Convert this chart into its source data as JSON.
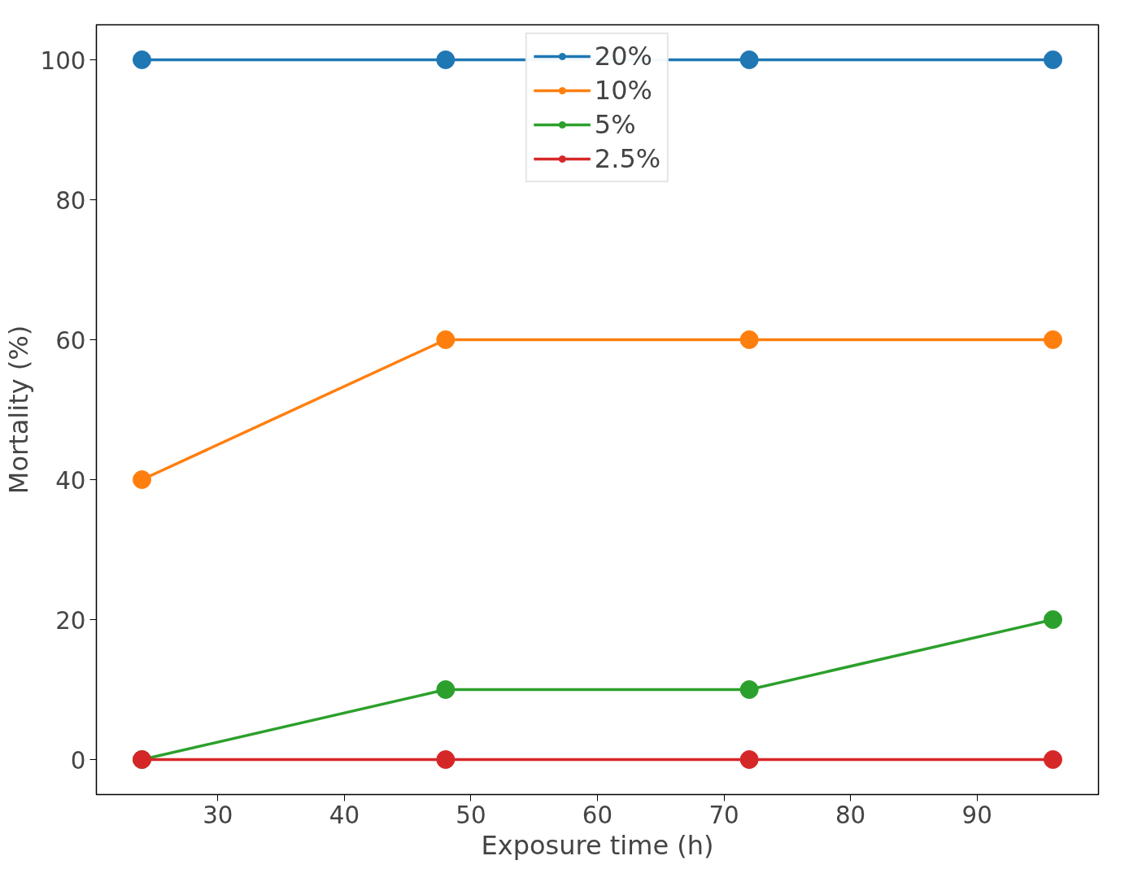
{
  "chart_data": {
    "type": "line",
    "xlabel": "Exposure time (h)",
    "ylabel": "Mortality (%)",
    "x": [
      24,
      48,
      72,
      96
    ],
    "series": [
      {
        "name": "20%",
        "color": "#1f77b4",
        "values": [
          100,
          100,
          100,
          100
        ]
      },
      {
        "name": "10%",
        "color": "#ff7f0e",
        "values": [
          40,
          60,
          60,
          60
        ]
      },
      {
        "name": "5%",
        "color": "#2ca02c",
        "values": [
          0,
          10,
          10,
          20
        ]
      },
      {
        "name": "2.5%",
        "color": "#d62728",
        "values": [
          0,
          0,
          0,
          0
        ]
      }
    ],
    "xlim": [
      20.4,
      99.6
    ],
    "ylim": [
      -5,
      105
    ],
    "xticks": [
      30,
      40,
      50,
      60,
      70,
      80,
      90
    ],
    "yticks": [
      0,
      20,
      40,
      60,
      80,
      100
    ],
    "grid": false,
    "legend": "top",
    "marker": "circle",
    "line_style": "solid"
  }
}
